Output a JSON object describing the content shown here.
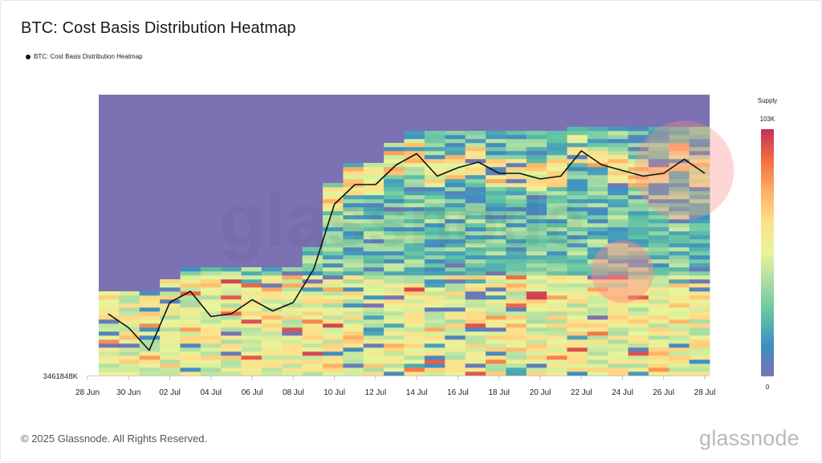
{
  "page": {
    "title": "BTC: Cost Basis Distribution Heatmap",
    "legend_label": "BTC: Cost Basis Distribution Heatmap",
    "footer": "© 2025 Glassnode. All Rights Reserved.",
    "brand": "glassnode",
    "watermark": "glassnode"
  },
  "colors": {
    "background_bin": "#7b71b3",
    "line": "#111111",
    "highlight_circle": "#ff8a8a"
  },
  "chart_data": {
    "type": "heatmap",
    "title": "BTC: Cost Basis Distribution Heatmap",
    "x_tick_labels": [
      "28 Jun",
      "30 Jun",
      "02 Jul",
      "04 Jul",
      "06 Jul",
      "08 Jul",
      "10 Jul",
      "12 Jul",
      "14 Jul",
      "16 Jul",
      "18 Jul",
      "20 Jul",
      "22 Jul",
      "24 Jul",
      "26 Jul",
      "28 Jul"
    ],
    "x_range": [
      "2025-06-28",
      "2025-07-28"
    ],
    "y_tick_labels": [
      "3461848K"
    ],
    "colorbar": {
      "title": "Supply",
      "max_label": "103K",
      "min_label": "0",
      "range": [
        0,
        103000
      ],
      "colors": [
        "#7b71b3",
        "#3e8fc2",
        "#5fc2a4",
        "#a6dba4",
        "#e6f59a",
        "#fee08b",
        "#fdae61",
        "#f46d43",
        "#c2305a"
      ]
    },
    "series": [
      {
        "name": "BTC: Cost Basis Distribution Heatmap",
        "type": "line",
        "x": [
          "2025-06-29",
          "2025-06-30",
          "2025-07-01",
          "2025-07-02",
          "2025-07-03",
          "2025-07-04",
          "2025-07-05",
          "2025-07-06",
          "2025-07-07",
          "2025-07-08",
          "2025-07-09",
          "2025-07-10",
          "2025-07-11",
          "2025-07-12",
          "2025-07-13",
          "2025-07-14",
          "2025-07-15",
          "2025-07-16",
          "2025-07-17",
          "2025-07-18",
          "2025-07-19",
          "2025-07-20",
          "2025-07-21",
          "2025-07-22",
          "2025-07-23",
          "2025-07-24",
          "2025-07-25",
          "2025-07-26",
          "2025-07-27",
          "2025-07-28"
        ],
        "y_relative": [
          0.22,
          0.17,
          0.09,
          0.26,
          0.3,
          0.21,
          0.22,
          0.27,
          0.23,
          0.26,
          0.38,
          0.61,
          0.68,
          0.68,
          0.75,
          0.79,
          0.71,
          0.74,
          0.76,
          0.72,
          0.72,
          0.7,
          0.71,
          0.8,
          0.75,
          0.73,
          0.71,
          0.72,
          0.77,
          0.72
        ]
      }
    ],
    "highlights": [
      {
        "x": "2025-07-27",
        "y_relative": 0.73,
        "size": "large"
      },
      {
        "x": "2025-07-24",
        "y_relative": 0.37,
        "size": "small"
      }
    ]
  }
}
